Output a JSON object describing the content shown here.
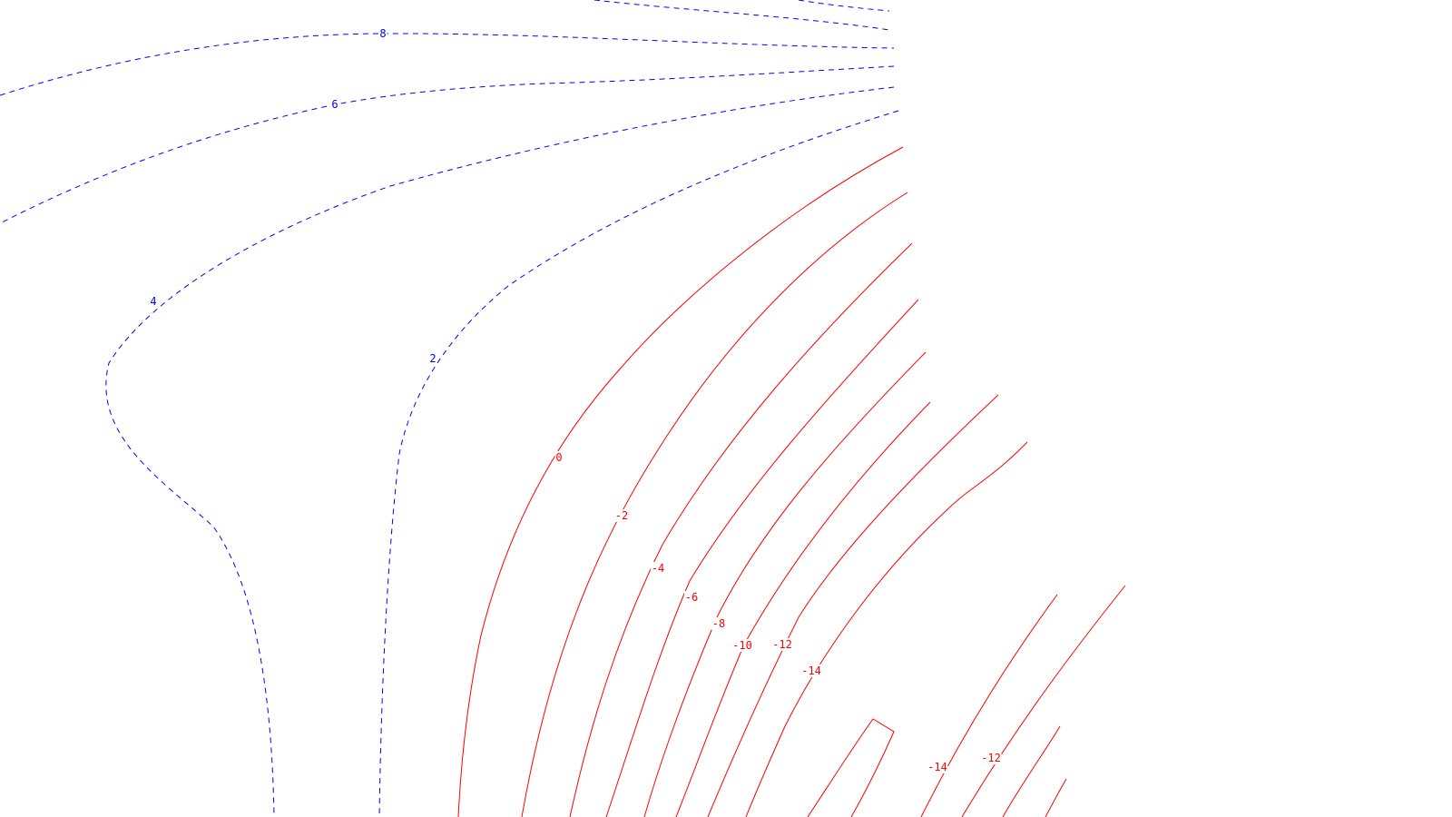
{
  "colors": {
    "positive": "#0000ff",
    "negative": "#ff0000",
    "background": "#ffffff"
  },
  "contours": [
    {
      "level": "8",
      "sign": "positive"
    },
    {
      "level": "6",
      "sign": "positive"
    },
    {
      "level": "4",
      "sign": "positive"
    },
    {
      "level": "2",
      "sign": "positive"
    },
    {
      "level": "0",
      "sign": "negative"
    },
    {
      "level": "-2",
      "sign": "negative"
    },
    {
      "level": "-4",
      "sign": "negative"
    },
    {
      "level": "-6",
      "sign": "negative"
    },
    {
      "level": "-8",
      "sign": "negative"
    },
    {
      "level": "-10",
      "sign": "negative"
    },
    {
      "level": "-12",
      "sign": "negative"
    },
    {
      "level": "-14",
      "sign": "negative"
    },
    {
      "level": "-14",
      "sign": "negative"
    },
    {
      "level": "-12",
      "sign": "negative"
    }
  ]
}
